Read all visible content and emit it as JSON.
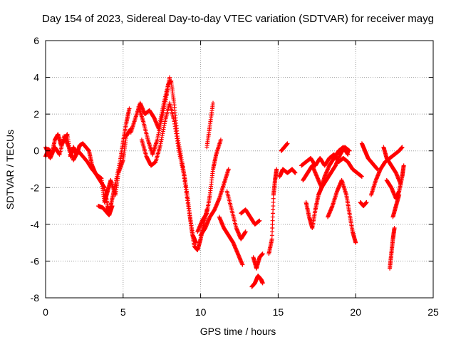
{
  "chart_data": {
    "type": "scatter",
    "title": "Day 154 of 2023, Sidereal Day-to-day VTEC variation (SDTVAR) for receiver mayg",
    "xlabel": "GPS time / hours",
    "ylabel": "SDTVAR / TECUs",
    "xlim": [
      0,
      25
    ],
    "ylim": [
      -8,
      6
    ],
    "x_ticks": [
      0,
      5,
      10,
      15,
      20,
      25
    ],
    "y_ticks": [
      -8,
      -6,
      -4,
      -2,
      0,
      2,
      4,
      6
    ],
    "grid": true,
    "marker": "+",
    "color": "#ff0000",
    "series": [
      {
        "name": "SDTVAR",
        "segments": [
          [
            [
              0.0,
              -0.3
            ],
            [
              0.2,
              0.1
            ],
            [
              0.4,
              -0.2
            ],
            [
              0.6,
              0.6
            ],
            [
              0.8,
              0.9
            ],
            [
              1.0,
              0.3
            ],
            [
              1.2,
              0.6
            ],
            [
              1.4,
              0.9
            ],
            [
              1.6,
              -0.3
            ],
            [
              1.8,
              0.2
            ],
            [
              2.0,
              -0.2
            ],
            [
              2.2,
              0.3
            ],
            [
              2.4,
              0.4
            ],
            [
              2.6,
              0.2
            ],
            [
              2.8,
              0.0
            ],
            [
              3.0,
              -0.8
            ],
            [
              3.2,
              -1.2
            ],
            [
              3.5,
              -1.6
            ],
            [
              3.8,
              -2.0
            ],
            [
              4.0,
              -3.0
            ],
            [
              4.1,
              -3.4
            ],
            [
              4.3,
              -2.6
            ],
            [
              4.5,
              -1.8
            ],
            [
              4.8,
              -0.6
            ],
            [
              5.0,
              0.5
            ],
            [
              5.2,
              1.5
            ],
            [
              5.4,
              2.3
            ]
          ],
          [
            [
              0.0,
              0.2
            ],
            [
              0.3,
              -0.4
            ],
            [
              0.6,
              0.2
            ],
            [
              0.9,
              -0.2
            ],
            [
              1.2,
              0.8
            ],
            [
              1.5,
              0.2
            ],
            [
              1.8,
              -0.5
            ],
            [
              2.1,
              0.0
            ],
            [
              2.4,
              -0.3
            ],
            [
              2.7,
              -0.6
            ],
            [
              3.0,
              -1.0
            ],
            [
              3.3,
              -1.3
            ],
            [
              3.6,
              -1.5
            ],
            [
              3.8,
              -2.8
            ],
            [
              4.0,
              -2.2
            ],
            [
              4.2,
              -1.6
            ],
            [
              4.5,
              -2.4
            ],
            [
              4.7,
              -1.2
            ],
            [
              5.0,
              -0.5
            ],
            [
              5.2,
              0.8
            ],
            [
              5.5,
              1.2
            ]
          ],
          [
            [
              3.4,
              -3.0
            ],
            [
              3.7,
              -3.1
            ],
            [
              3.9,
              -3.3
            ],
            [
              4.1,
              -3.5
            ],
            [
              4.3,
              -3.0
            ]
          ],
          [
            [
              5.5,
              1.0
            ],
            [
              5.8,
              1.8
            ],
            [
              6.1,
              2.6
            ],
            [
              6.4,
              2.0
            ],
            [
              6.7,
              2.2
            ],
            [
              7.0,
              1.8
            ],
            [
              7.3,
              1.2
            ],
            [
              7.6,
              2.5
            ],
            [
              7.9,
              3.6
            ],
            [
              8.1,
              3.8
            ],
            [
              8.3,
              2.5
            ],
            [
              8.5,
              0.8
            ],
            [
              8.8,
              -0.6
            ],
            [
              9.0,
              -1.6
            ],
            [
              9.2,
              -2.8
            ],
            [
              9.4,
              -4.2
            ],
            [
              9.6,
              -5.2
            ],
            [
              9.8,
              -5.4
            ],
            [
              10.0,
              -4.8
            ],
            [
              10.2,
              -4.0
            ],
            [
              10.4,
              -3.2
            ]
          ],
          [
            [
              6.2,
              0.6
            ],
            [
              6.5,
              -0.3
            ],
            [
              6.8,
              -0.8
            ],
            [
              7.1,
              -0.6
            ],
            [
              7.4,
              0.3
            ],
            [
              7.7,
              1.6
            ],
            [
              8.0,
              2.6
            ],
            [
              8.3,
              1.6
            ],
            [
              8.6,
              0.0
            ],
            [
              8.9,
              -1.2
            ],
            [
              9.2,
              -3.0
            ],
            [
              9.5,
              -4.6
            ],
            [
              9.7,
              -5.0
            ]
          ],
          [
            [
              6.0,
              2.4
            ],
            [
              6.3,
              1.6
            ],
            [
              6.6,
              0.6
            ],
            [
              6.9,
              -0.2
            ],
            [
              7.2,
              0.6
            ],
            [
              7.5,
              1.8
            ],
            [
              7.8,
              3.0
            ],
            [
              8.0,
              4.0
            ]
          ],
          [
            [
              9.8,
              -4.4
            ],
            [
              10.1,
              -3.8
            ],
            [
              10.4,
              -3.4
            ],
            [
              10.6,
              -2.4
            ],
            [
              10.8,
              -1.0
            ],
            [
              11.0,
              -0.2
            ],
            [
              11.3,
              0.6
            ]
          ],
          [
            [
              10.4,
              0.2
            ],
            [
              10.6,
              1.4
            ],
            [
              10.8,
              2.6
            ]
          ],
          [
            [
              10.0,
              -4.6
            ],
            [
              10.3,
              -4.2
            ],
            [
              10.6,
              -3.6
            ],
            [
              10.9,
              -3.2
            ],
            [
              11.2,
              -2.6
            ],
            [
              11.5,
              -1.8
            ],
            [
              11.8,
              -1.0
            ]
          ],
          [
            [
              11.2,
              -3.6
            ],
            [
              11.5,
              -4.2
            ],
            [
              11.8,
              -4.6
            ],
            [
              12.1,
              -5.0
            ],
            [
              12.4,
              -5.6
            ],
            [
              12.7,
              -6.2
            ]
          ],
          [
            [
              11.7,
              -2.2
            ],
            [
              12.0,
              -3.2
            ],
            [
              12.3,
              -4.2
            ],
            [
              12.6,
              -4.8
            ],
            [
              12.9,
              -4.4
            ]
          ],
          [
            [
              12.6,
              -3.4
            ],
            [
              12.9,
              -3.2
            ],
            [
              13.2,
              -3.6
            ],
            [
              13.5,
              -4.0
            ],
            [
              13.8,
              -3.8
            ]
          ],
          [
            [
              13.3,
              -7.4
            ],
            [
              13.5,
              -7.2
            ],
            [
              13.7,
              -6.8
            ],
            [
              13.9,
              -7.0
            ],
            [
              14.0,
              -7.2
            ]
          ],
          [
            [
              13.4,
              -5.8
            ],
            [
              13.6,
              -6.4
            ],
            [
              13.8,
              -5.8
            ],
            [
              14.0,
              -5.6
            ]
          ],
          [
            [
              14.4,
              -5.6
            ],
            [
              14.6,
              -4.8
            ],
            [
              14.7,
              -2.4
            ],
            [
              14.8,
              -1.6
            ],
            [
              14.9,
              -1.0
            ]
          ],
          [
            [
              15.1,
              -1.4
            ],
            [
              15.3,
              -1.0
            ],
            [
              15.6,
              -1.2
            ],
            [
              15.9,
              -1.0
            ],
            [
              16.1,
              -1.2
            ]
          ],
          [
            [
              15.2,
              0.0
            ],
            [
              15.4,
              0.2
            ],
            [
              15.6,
              0.4
            ]
          ],
          [
            [
              16.5,
              -0.8
            ],
            [
              16.8,
              -0.6
            ],
            [
              17.1,
              -0.4
            ],
            [
              17.4,
              -0.8
            ],
            [
              17.7,
              -0.4
            ],
            [
              18.0,
              -0.8
            ],
            [
              18.3,
              -0.4
            ],
            [
              18.6,
              -0.2
            ],
            [
              18.9,
              -0.6
            ],
            [
              19.2,
              -0.4
            ],
            [
              19.5,
              -0.6
            ],
            [
              19.8,
              -1.0
            ],
            [
              20.1,
              -1.2
            ],
            [
              20.4,
              -1.4
            ]
          ],
          [
            [
              16.6,
              -1.6
            ],
            [
              16.9,
              -1.2
            ],
            [
              17.2,
              -0.8
            ],
            [
              17.5,
              -1.4
            ],
            [
              17.8,
              -2.0
            ],
            [
              18.1,
              -1.6
            ],
            [
              18.4,
              -1.2
            ],
            [
              18.7,
              -0.8
            ],
            [
              19.0,
              -0.2
            ],
            [
              19.3,
              0.2
            ],
            [
              19.6,
              0.0
            ]
          ],
          [
            [
              16.8,
              -2.8
            ],
            [
              17.0,
              -3.6
            ],
            [
              17.2,
              -4.2
            ],
            [
              17.4,
              -3.2
            ],
            [
              17.6,
              -2.4
            ],
            [
              17.8,
              -2.0
            ],
            [
              18.0,
              -1.4
            ],
            [
              18.3,
              -0.8
            ],
            [
              18.6,
              -0.4
            ],
            [
              18.9,
              0.0
            ],
            [
              19.2,
              0.2
            ],
            [
              19.5,
              -0.2
            ]
          ],
          [
            [
              18.2,
              -3.6
            ],
            [
              18.5,
              -3.0
            ],
            [
              18.8,
              -2.2
            ],
            [
              19.1,
              -1.6
            ],
            [
              19.4,
              -2.4
            ],
            [
              19.6,
              -3.4
            ],
            [
              19.8,
              -4.4
            ],
            [
              20.0,
              -5.0
            ]
          ],
          [
            [
              20.3,
              -2.8
            ],
            [
              20.5,
              -3.0
            ],
            [
              20.7,
              -2.8
            ]
          ],
          [
            [
              20.4,
              0.4
            ],
            [
              20.6,
              0.0
            ],
            [
              20.8,
              -0.4
            ],
            [
              21.0,
              -0.6
            ],
            [
              21.2,
              -0.8
            ],
            [
              21.4,
              -1.0
            ]
          ],
          [
            [
              21.0,
              -2.4
            ],
            [
              21.3,
              -1.6
            ],
            [
              21.6,
              -1.0
            ],
            [
              21.9,
              -0.6
            ],
            [
              22.2,
              -0.4
            ],
            [
              22.5,
              -0.2
            ],
            [
              22.8,
              0.0
            ],
            [
              23.0,
              0.2
            ]
          ],
          [
            [
              21.8,
              0.2
            ],
            [
              22.0,
              -0.4
            ],
            [
              22.3,
              -0.8
            ],
            [
              22.6,
              -1.2
            ],
            [
              22.9,
              -1.8
            ]
          ],
          [
            [
              22.0,
              -1.6
            ],
            [
              22.3,
              -2.0
            ],
            [
              22.6,
              -2.6
            ],
            [
              22.8,
              -2.2
            ],
            [
              23.0,
              -1.4
            ],
            [
              23.1,
              -0.8
            ]
          ],
          [
            [
              22.2,
              -6.4
            ],
            [
              22.3,
              -5.6
            ],
            [
              22.4,
              -4.8
            ],
            [
              22.5,
              -4.2
            ]
          ],
          [
            [
              22.4,
              -3.6
            ],
            [
              22.6,
              -3.0
            ],
            [
              22.8,
              -2.4
            ]
          ]
        ]
      }
    ]
  }
}
